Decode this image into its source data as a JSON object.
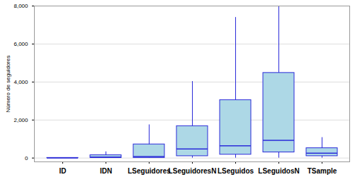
{
  "chart_data": {
    "type": "boxplot",
    "y_label": "Número de seguidores",
    "categories": [
      "ID",
      "IDN",
      "LSeguidores",
      "LSeguidoresN",
      "LSeguidos",
      "LSeguidosN",
      "TSample"
    ],
    "min": [
      0,
      0,
      0,
      0,
      0,
      0,
      0
    ],
    "q1": [
      0,
      10,
      10,
      100,
      180,
      300,
      100
    ],
    "median": [
      5,
      50,
      80,
      480,
      640,
      930,
      250
    ],
    "q3": [
      10,
      150,
      720,
      1680,
      3050,
      4480,
      520
    ],
    "max": [
      15,
      330,
      1750,
      4030,
      7400,
      8200,
      1080
    ],
    "color": "#add8e6",
    "ylim": [
      -200,
      8000
    ],
    "yticks": [
      0,
      2000,
      4000,
      6000,
      8000
    ],
    "grid": true
  }
}
